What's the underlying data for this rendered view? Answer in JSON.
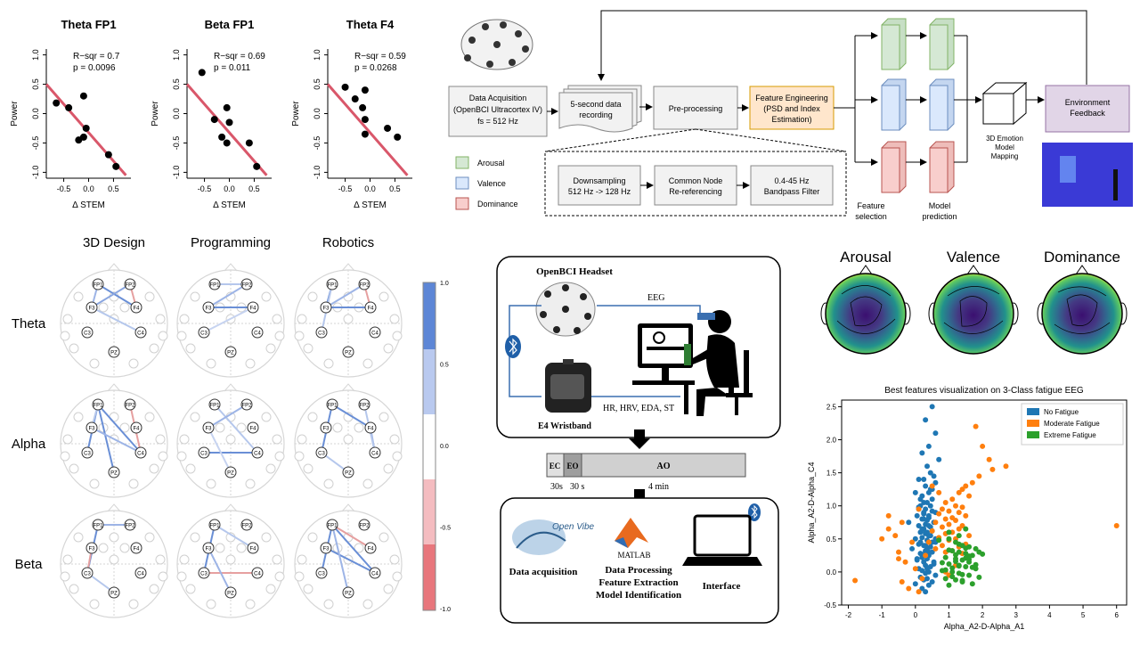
{
  "scatter_panels": [
    {
      "title": "Theta FP1",
      "r_sqr": "R−sqr = 0.7",
      "p": "p = 0.0096",
      "xlabel": "Δ STEM",
      "ylabel": "Power",
      "xticks": [
        "-0.5",
        "0.0",
        "0.5"
      ],
      "yticks": [
        "1.0",
        "0.5",
        "0.0",
        "-0.5",
        "-1.0"
      ]
    },
    {
      "title": "Beta FP1",
      "r_sqr": "R−sqr = 0.69",
      "p": "p = 0.011",
      "xlabel": "Δ STEM",
      "ylabel": "Power",
      "xticks": [
        "-0.5",
        "0.0",
        "0.5"
      ],
      "yticks": [
        "1.0",
        "0.5",
        "0.0",
        "-0.5",
        "-1.0"
      ]
    },
    {
      "title": "Theta F4",
      "r_sqr": "R−sqr = 0.59",
      "p": "p = 0.0268",
      "xlabel": "Δ STEM",
      "ylabel": "Power",
      "xticks": [
        "-0.5",
        "0.0",
        "0.5"
      ],
      "yticks": [
        "1.0",
        "0.5",
        "0.0",
        "-0.5",
        "-1.0"
      ]
    }
  ],
  "flowchart": {
    "data_acq": [
      "Data Acquisition",
      "(OpenBCI Ultracortex IV)",
      "fs = 512 Hz"
    ],
    "recording": [
      "5-second data",
      "recording"
    ],
    "preproc": "Pre-processing",
    "feature": [
      "Feature Engineering",
      "(PSD and Index",
      "Estimation)"
    ],
    "downsampling": [
      "Downsampling",
      "512 Hz -> 128 Hz"
    ],
    "reref": [
      "Common Node",
      "Re-referencing"
    ],
    "bandpass": [
      "0.4-45 Hz",
      "Bandpass Filter"
    ],
    "feature_selection": [
      "Feature",
      "selection"
    ],
    "model_prediction": [
      "Model",
      "prediction"
    ],
    "mapping": [
      "3D Emotion",
      "Model",
      "Mapping"
    ],
    "env_feedback": [
      "Environment",
      "Feedback"
    ],
    "legend": [
      "Arousal",
      "Valence",
      "Dominance"
    ],
    "colors": {
      "arousal": "#d5e8d4",
      "valence": "#dae8fc",
      "dominance": "#f8cecc",
      "feature": "#ffe6cc",
      "env": "#e1d5e7"
    }
  },
  "connectivity": {
    "columns": [
      "3D Design",
      "Programming",
      "Robotics"
    ],
    "rows": [
      "Theta",
      "Alpha",
      "Beta"
    ],
    "electrodes": [
      "FP1",
      "FP2",
      "F3",
      "F4",
      "C3",
      "C4",
      "PZ"
    ],
    "colorbar_ticks": [
      "1.0",
      "0.5",
      "0.0",
      "-0.5",
      "-1.0"
    ]
  },
  "setup": {
    "headset_label": "OpenBCI Headset",
    "eeg_label": "EEG",
    "physio_label": "HR, HRV, EDA, ST",
    "wristband_label": "E4 Wristband",
    "timeline": [
      {
        "label": "EC",
        "time": "30s",
        "fraction": 0.07
      },
      {
        "label": "EO",
        "time": "30 s",
        "fraction": 0.07
      },
      {
        "label": "AO",
        "time": "4 min",
        "fraction": 0.86
      }
    ],
    "openvibe_logo": "Open Vibe",
    "tools": [
      "Data acquisition",
      "MATLAB",
      "Interface"
    ],
    "processing_lines": [
      "Data Processing",
      "Feature Extraction",
      "Model Identification"
    ]
  },
  "topomaps": [
    "Arousal",
    "Valence",
    "Dominance"
  ],
  "chart_data": {
    "type": "scatter",
    "title": "Best features visualization on 3-Class fatigue EEG",
    "xlabel": "Alpha_A2-D-Alpha_A1",
    "ylabel": "Alpha_A2-D-Alpha_C4",
    "xlim": [
      -2.2,
      6.3
    ],
    "ylim": [
      -0.5,
      2.6
    ],
    "xticks": [
      -2,
      -1,
      0,
      1,
      2,
      3,
      4,
      5,
      6
    ],
    "yticks": [
      -0.5,
      0.0,
      0.5,
      1.0,
      1.5,
      2.0,
      2.5
    ],
    "legend_position": "top-right",
    "series": [
      {
        "name": "No Fatigue",
        "color": "#1f77b4",
        "x": [
          0.5,
          0.3,
          0.6,
          0.4,
          0.2,
          0.7,
          0.35,
          0.45,
          0.55,
          0.25,
          0.6,
          0.3,
          0.5,
          0.4,
          0.2,
          0.15,
          0.35,
          0.45,
          0.1,
          0.3,
          0.5,
          0.6,
          0.25,
          0.05,
          0.4,
          0.2,
          0.35,
          0.55,
          0.3,
          0.1,
          0.45,
          0.25,
          0.5,
          0.15,
          0.3,
          0.4,
          0.2,
          0.0,
          0.35,
          0.6,
          0.1,
          0.25,
          0.45,
          -0.1,
          0.3,
          0.5,
          0.15,
          0.4,
          0.2,
          0.35,
          0.05,
          0.25,
          0.55,
          0.3,
          0.45,
          0.1,
          0.2,
          0.4,
          0.3,
          0.6,
          0.15,
          0.35,
          0.25,
          0.5,
          0.0,
          0.4,
          0.2,
          0.3,
          0.1,
          0.45,
          -0.2,
          0.35,
          0.25,
          0.5,
          0.15,
          0.3,
          0.4,
          0.2,
          0.6,
          0.35,
          0.05,
          0.25,
          0.45,
          0.3,
          0.1,
          0.4,
          0.2,
          0.55,
          0.35,
          0.0,
          0.25,
          0.3,
          0.15,
          0.5,
          0.4
        ],
        "y": [
          2.5,
          2.3,
          2.1,
          1.9,
          1.8,
          1.7,
          1.6,
          1.5,
          1.45,
          1.4,
          1.35,
          1.3,
          1.25,
          1.2,
          1.15,
          1.1,
          1.05,
          1.0,
          0.98,
          0.95,
          0.92,
          0.9,
          0.88,
          0.85,
          0.82,
          0.8,
          0.78,
          0.75,
          0.72,
          0.7,
          0.68,
          0.65,
          0.62,
          0.6,
          0.58,
          0.55,
          0.52,
          0.5,
          0.48,
          0.45,
          0.42,
          0.4,
          0.38,
          0.35,
          0.32,
          0.3,
          0.28,
          0.25,
          0.22,
          0.2,
          0.18,
          0.15,
          0.12,
          0.1,
          0.08,
          0.05,
          0.02,
          0.0,
          -0.02,
          -0.05,
          -0.08,
          -0.1,
          -0.12,
          -0.15,
          -0.18,
          -0.2,
          -0.25,
          -0.3,
          1.4,
          1.25,
          0.75,
          0.6,
          0.9,
          1.1,
          0.45,
          0.3,
          0.85,
          0.65,
          0.5,
          0.35,
          0.2,
          1.05,
          0.55,
          0.4,
          0.95,
          0.7,
          0.25,
          0.15,
          0.05,
          1.2,
          0.8,
          0.6,
          1.0,
          0.45,
          0.3
        ]
      },
      {
        "name": "Moderate Fatigue",
        "color": "#ff7f0e",
        "x": [
          1.8,
          2.0,
          2.2,
          2.7,
          1.5,
          1.3,
          1.6,
          1.1,
          0.9,
          1.2,
          1.4,
          0.8,
          1.0,
          1.3,
          0.7,
          1.5,
          1.1,
          0.9,
          1.2,
          0.6,
          1.0,
          1.4,
          0.8,
          1.3,
          0.5,
          1.1,
          0.9,
          1.6,
          0.7,
          1.2,
          1.0,
          0.4,
          1.5,
          0.8,
          1.3,
          0.6,
          1.1,
          0.9,
          1.4,
          0.3,
          -0.4,
          -0.6,
          -1.0,
          -0.8,
          -0.5,
          -0.3,
          0.0,
          0.2,
          -0.2,
          0.1,
          -0.4,
          -0.5,
          -1.8,
          -0.8,
          0.1,
          6.0,
          1.9,
          1.7,
          1.4,
          2.3,
          1.2,
          1.0,
          0.9,
          0.7,
          0.5,
          -0.1
        ],
        "y": [
          2.2,
          1.9,
          1.7,
          1.6,
          1.3,
          1.2,
          1.15,
          1.1,
          1.05,
          1.0,
          0.98,
          0.95,
          0.92,
          0.9,
          0.88,
          0.85,
          0.82,
          0.8,
          0.78,
          0.75,
          0.72,
          0.7,
          0.68,
          0.65,
          0.62,
          0.6,
          0.58,
          0.55,
          0.52,
          0.5,
          0.48,
          0.45,
          0.42,
          0.4,
          0.38,
          0.35,
          0.32,
          0.3,
          0.28,
          0.25,
          0.75,
          0.55,
          0.5,
          0.85,
          0.3,
          0.15,
          0.05,
          -0.1,
          -0.25,
          -0.3,
          -0.15,
          0.2,
          -0.13,
          0.65,
          0.95,
          0.7,
          1.45,
          1.35,
          1.25,
          1.55,
          0.1,
          -0.05,
          0.0,
          1.2,
          1.3,
          0.45
        ]
      },
      {
        "name": "Extreme Fatigue",
        "color": "#2ca02c",
        "x": [
          1.0,
          1.2,
          1.4,
          1.6,
          1.8,
          1.1,
          1.3,
          1.5,
          1.7,
          0.9,
          1.2,
          1.4,
          1.6,
          1.0,
          1.3,
          1.5,
          1.8,
          0.8,
          1.1,
          1.3,
          1.6,
          1.9,
          0.9,
          1.2,
          1.4,
          1.7,
          1.0,
          1.3,
          1.5,
          2.0,
          0.8,
          1.1,
          1.4,
          1.6,
          1.2,
          1.0,
          1.5,
          1.3,
          1.8,
          0.9,
          1.1,
          1.4,
          1.6,
          1.2,
          1.7,
          1.0,
          1.3,
          1.5,
          0.7,
          1.9
        ],
        "y": [
          0.5,
          0.45,
          0.4,
          0.38,
          0.35,
          0.32,
          0.3,
          0.28,
          0.25,
          0.22,
          0.2,
          0.18,
          0.15,
          0.12,
          0.1,
          0.08,
          0.05,
          0.02,
          0.0,
          -0.02,
          -0.05,
          -0.08,
          -0.1,
          -0.12,
          -0.15,
          -0.18,
          -0.2,
          0.42,
          0.36,
          0.27,
          0.14,
          0.06,
          -0.04,
          0.24,
          0.16,
          0.33,
          0.21,
          0.09,
          0.11,
          0.03,
          -0.07,
          -0.13,
          0.19,
          0.26,
          0.07,
          0.6,
          0.55,
          0.65,
          0.48,
          0.3
        ]
      }
    ]
  }
}
